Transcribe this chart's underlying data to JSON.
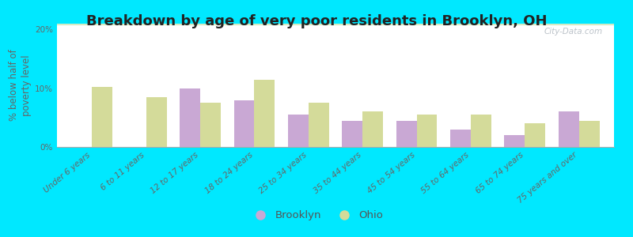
{
  "title": "Breakdown by age of very poor residents in Brooklyn, OH",
  "ylabel": "% below half of\npoverty level",
  "categories": [
    "Under 6 years",
    "6 to 11 years",
    "12 to 17 years",
    "18 to 24 years",
    "25 to 34 years",
    "35 to 44 years",
    "45 to 54 years",
    "55 to 64 years",
    "65 to 74 years",
    "75 years and over"
  ],
  "brooklyn_values": [
    0,
    0,
    10.0,
    8.0,
    5.5,
    4.5,
    4.5,
    3.0,
    2.0,
    6.0
  ],
  "ohio_values": [
    10.2,
    8.5,
    7.5,
    11.5,
    7.5,
    6.0,
    5.5,
    5.5,
    4.0,
    4.5
  ],
  "brooklyn_color": "#c9a8d4",
  "ohio_color": "#d4db9a",
  "bg_outer": "#00e8ff",
  "bg_plot_top": "#f5faf0",
  "bg_plot_bottom": "#cce8bb",
  "ylim": [
    0,
    21
  ],
  "yticks": [
    0,
    10,
    20
  ],
  "ytick_labels": [
    "0%",
    "10%",
    "20%"
  ],
  "bar_width": 0.38,
  "title_fontsize": 13,
  "axis_fontsize": 8.5,
  "tick_fontsize": 7.5,
  "legend_brooklyn": "Brooklyn",
  "legend_ohio": "Ohio",
  "watermark": "City-Data.com"
}
